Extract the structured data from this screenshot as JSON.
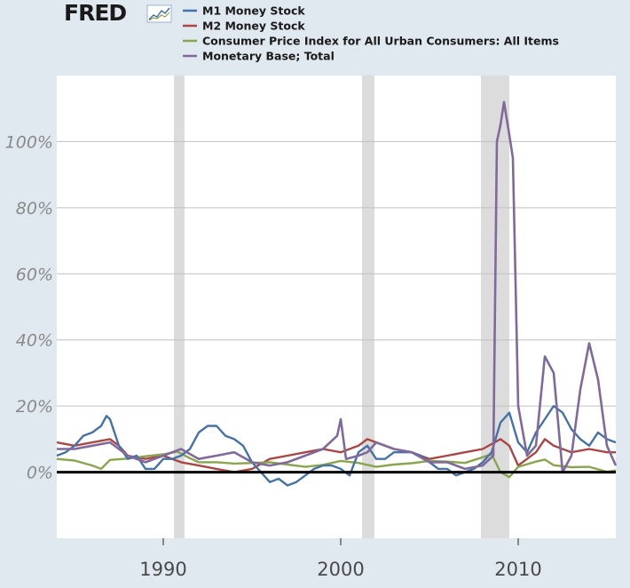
{
  "logo": {
    "text": "FRED"
  },
  "colors": {
    "m1": "#4572a7",
    "m2": "#aa4643",
    "cpi": "#89a54e",
    "base": "#80699b",
    "recession": "#dcdcdc",
    "grid": "#c0c0c0",
    "plot_bg": "#ffffff",
    "chrome": "#e1e9f0",
    "zero_line": "#000000"
  },
  "chart_data": {
    "type": "line",
    "title": "",
    "xlabel": "",
    "ylabel": "",
    "xlim": [
      1984,
      2015.5
    ],
    "ylim": [
      -20,
      120
    ],
    "y_ticks": [
      0,
      20,
      40,
      60,
      80,
      100
    ],
    "y_tick_labels": [
      "0%",
      "20%",
      "40%",
      "60%",
      "80%",
      "100%"
    ],
    "x_ticks": [
      1990,
      2000,
      2010
    ],
    "x_tick_labels": [
      "1990",
      "2000",
      "2010"
    ],
    "grid": "horizontal",
    "legend_placement": "top-left",
    "recessions": [
      [
        1990.6,
        1991.2
      ],
      [
        2001.2,
        2001.9
      ],
      [
        2007.9,
        2009.5
      ]
    ],
    "series": [
      {
        "name": "M1 Money Stock",
        "color_key": "m1",
        "x": [
          1984.0,
          1984.5,
          1985.0,
          1985.5,
          1986.0,
          1986.5,
          1986.8,
          1987.0,
          1987.5,
          1988.0,
          1988.5,
          1989.0,
          1989.5,
          1990.0,
          1990.5,
          1991.0,
          1991.5,
          1992.0,
          1992.5,
          1993.0,
          1993.5,
          1994.0,
          1994.5,
          1995.0,
          1995.5,
          1996.0,
          1996.5,
          1997.0,
          1997.5,
          1998.0,
          1998.5,
          1999.0,
          1999.5,
          2000.0,
          2000.5,
          2001.0,
          2001.5,
          2002.0,
          2002.5,
          2003.0,
          2003.5,
          2004.0,
          2004.5,
          2005.0,
          2005.5,
          2006.0,
          2006.5,
          2007.0,
          2007.5,
          2008.0,
          2008.5,
          2009.0,
          2009.5,
          2010.0,
          2010.5,
          2011.0,
          2011.5,
          2012.0,
          2012.5,
          2013.0,
          2013.5,
          2014.0,
          2014.5,
          2015.0,
          2015.5
        ],
        "y": [
          5,
          6,
          8,
          11,
          12,
          14,
          17,
          16,
          8,
          4,
          5,
          1,
          1,
          4,
          4,
          5,
          7,
          12,
          14,
          14,
          11,
          10,
          8,
          3,
          0,
          -3,
          -2,
          -4,
          -3,
          -1,
          1,
          2,
          2,
          1,
          -1,
          6,
          8,
          4,
          4,
          6,
          6,
          6,
          5,
          3,
          1,
          1,
          -1,
          0,
          1,
          3,
          6,
          15,
          18,
          9,
          6,
          12,
          16,
          20,
          18,
          13,
          10,
          8,
          12,
          10,
          9
        ]
      },
      {
        "name": "M2 Money Stock",
        "color_key": "m2",
        "x": [
          1984.0,
          1985.0,
          1986.0,
          1987.0,
          1987.5,
          1988.0,
          1989.0,
          1990.0,
          1991.0,
          1992.0,
          1993.0,
          1994.0,
          1995.0,
          1996.0,
          1997.0,
          1998.0,
          1999.0,
          2000.0,
          2001.0,
          2001.5,
          2002.0,
          2003.0,
          2004.0,
          2005.0,
          2006.0,
          2007.0,
          2008.0,
          2009.0,
          2009.5,
          2010.0,
          2011.0,
          2011.5,
          2012.0,
          2013.0,
          2014.0,
          2015.0,
          2015.5
        ],
        "y": [
          9,
          8,
          9,
          10,
          8,
          5,
          4,
          5,
          3,
          2,
          1,
          0,
          1,
          4,
          5,
          6,
          7,
          6,
          8,
          10,
          9,
          7,
          6,
          4,
          5,
          6,
          7,
          10,
          8,
          2,
          6,
          10,
          8,
          6,
          7,
          6,
          6
        ]
      },
      {
        "name": "Consumer Price Index for All Urban Consumers: All Items",
        "color_key": "cpi",
        "x": [
          1984.0,
          1985.0,
          1986.0,
          1986.5,
          1987.0,
          1988.0,
          1989.0,
          1990.0,
          1990.8,
          1991.5,
          1992.0,
          1993.0,
          1994.0,
          1995.0,
          1996.0,
          1997.0,
          1998.0,
          1999.0,
          2000.0,
          2001.0,
          2002.0,
          2003.0,
          2004.0,
          2005.0,
          2006.0,
          2007.0,
          2008.0,
          2008.5,
          2009.0,
          2009.5,
          2010.0,
          2011.0,
          2011.5,
          2012.0,
          2013.0,
          2014.0,
          2015.0,
          2015.5
        ],
        "y": [
          4,
          3.5,
          2,
          1,
          3.7,
          4.1,
          4.8,
          5.4,
          6.2,
          4.2,
          3,
          3,
          2.6,
          2.8,
          3,
          2.3,
          1.6,
          2.2,
          3.4,
          2.8,
          1.6,
          2.3,
          2.7,
          3.4,
          3.2,
          2.8,
          4.5,
          5.5,
          0,
          -1.5,
          1.6,
          3.2,
          3.8,
          2.1,
          1.5,
          1.6,
          0.1,
          0.5
        ]
      },
      {
        "name": "Monetary Base; Total",
        "color_key": "base",
        "x": [
          1984.0,
          1985.0,
          1986.0,
          1987.0,
          1987.5,
          1988.0,
          1989.0,
          1990.0,
          1991.0,
          1992.0,
          1993.0,
          1994.0,
          1995.0,
          1996.0,
          1997.0,
          1998.0,
          1999.0,
          1999.8,
          2000.0,
          2000.3,
          2001.0,
          2001.5,
          2002.0,
          2003.0,
          2004.0,
          2005.0,
          2006.0,
          2007.0,
          2008.0,
          2008.6,
          2008.8,
          2009.0,
          2009.2,
          2009.5,
          2009.7,
          2010.0,
          2010.5,
          2011.0,
          2011.5,
          2012.0,
          2012.5,
          2013.0,
          2013.5,
          2014.0,
          2014.5,
          2015.0,
          2015.5
        ],
        "y": [
          7,
          7,
          8,
          9,
          7,
          5,
          3,
          5,
          7,
          4,
          5,
          6,
          3,
          2,
          3,
          5,
          7,
          11,
          16,
          4,
          5,
          6,
          9,
          7,
          6,
          3,
          3,
          1,
          2,
          5,
          100,
          105,
          112,
          102,
          95,
          20,
          5,
          8,
          35,
          30,
          0,
          5,
          25,
          39,
          28,
          8,
          2
        ]
      }
    ]
  }
}
